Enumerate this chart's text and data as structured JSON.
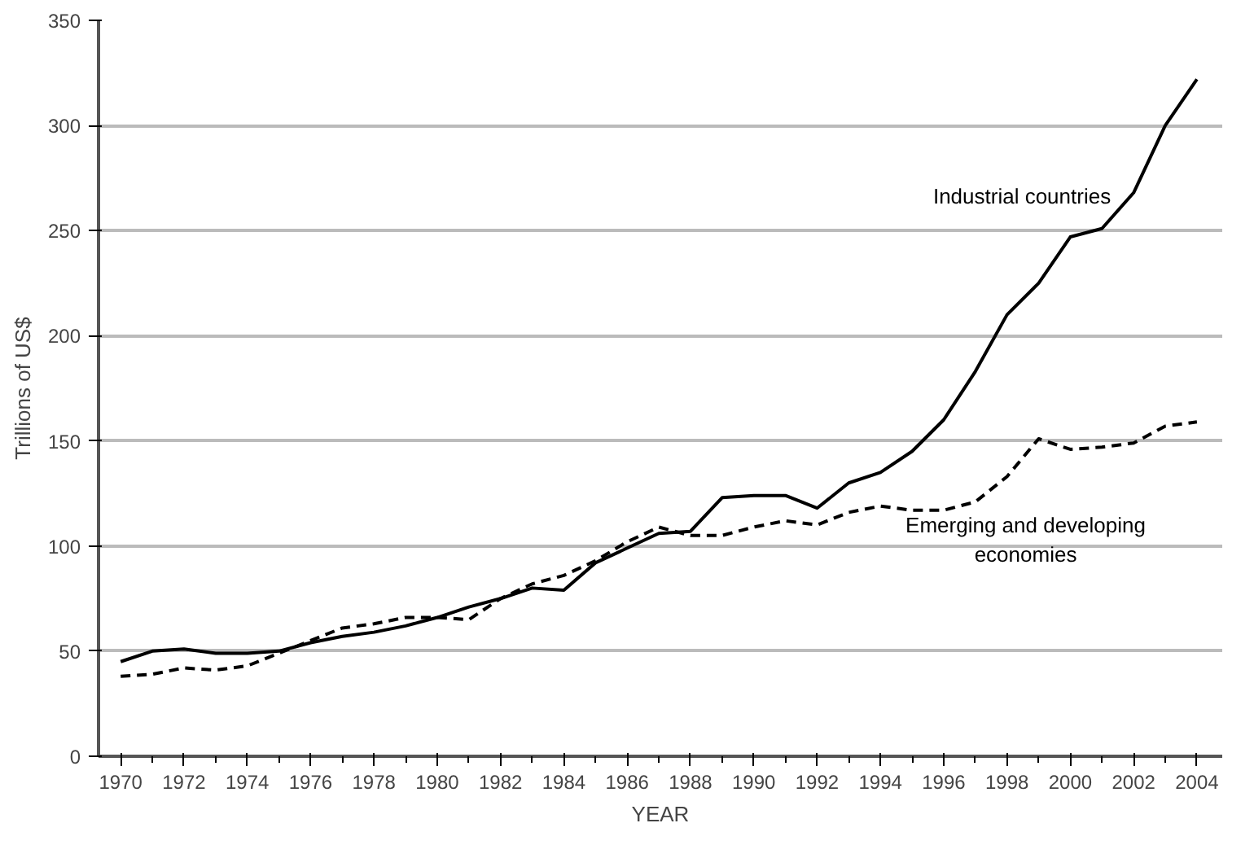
{
  "chart_data": {
    "type": "line",
    "xlabel": "YEAR",
    "ylabel": "Trillions of US$",
    "x": [
      1970,
      1971,
      1972,
      1973,
      1974,
      1975,
      1976,
      1977,
      1978,
      1979,
      1980,
      1981,
      1982,
      1983,
      1984,
      1985,
      1986,
      1987,
      1988,
      1989,
      1990,
      1991,
      1992,
      1993,
      1994,
      1995,
      1996,
      1997,
      1998,
      1999,
      2000,
      2001,
      2002,
      2003,
      2004
    ],
    "series": [
      {
        "name": "Industrial countries",
        "color": "#000000",
        "line_style": "solid",
        "values": [
          45,
          50,
          51,
          49,
          49,
          50,
          54,
          57,
          59,
          62,
          66,
          71,
          75,
          80,
          79,
          92,
          99,
          106,
          107,
          123,
          124,
          124,
          118,
          130,
          135,
          145,
          160,
          183,
          210,
          225,
          247,
          251,
          268,
          300,
          322
        ]
      },
      {
        "name": "Emerging and developing\neconomies",
        "color": "#000000",
        "line_style": "dashed",
        "values": [
          38,
          39,
          42,
          41,
          43,
          49,
          55,
          61,
          63,
          66,
          66,
          65,
          75,
          82,
          86,
          93,
          102,
          109,
          105,
          105,
          109,
          112,
          110,
          116,
          119,
          117,
          117,
          121,
          133,
          151,
          146,
          147,
          149,
          157,
          159
        ]
      }
    ],
    "xlim": [
      1969.3,
      2004.8
    ],
    "xticks": [
      1970,
      1972,
      1974,
      1976,
      1978,
      1980,
      1982,
      1984,
      1986,
      1988,
      1990,
      1992,
      1994,
      1996,
      1998,
      2000,
      2002,
      2004
    ],
    "ylim": [
      0,
      350
    ],
    "yticks": [
      0,
      50,
      100,
      150,
      200,
      250,
      300,
      350
    ],
    "grid": "y",
    "marker": "none"
  }
}
